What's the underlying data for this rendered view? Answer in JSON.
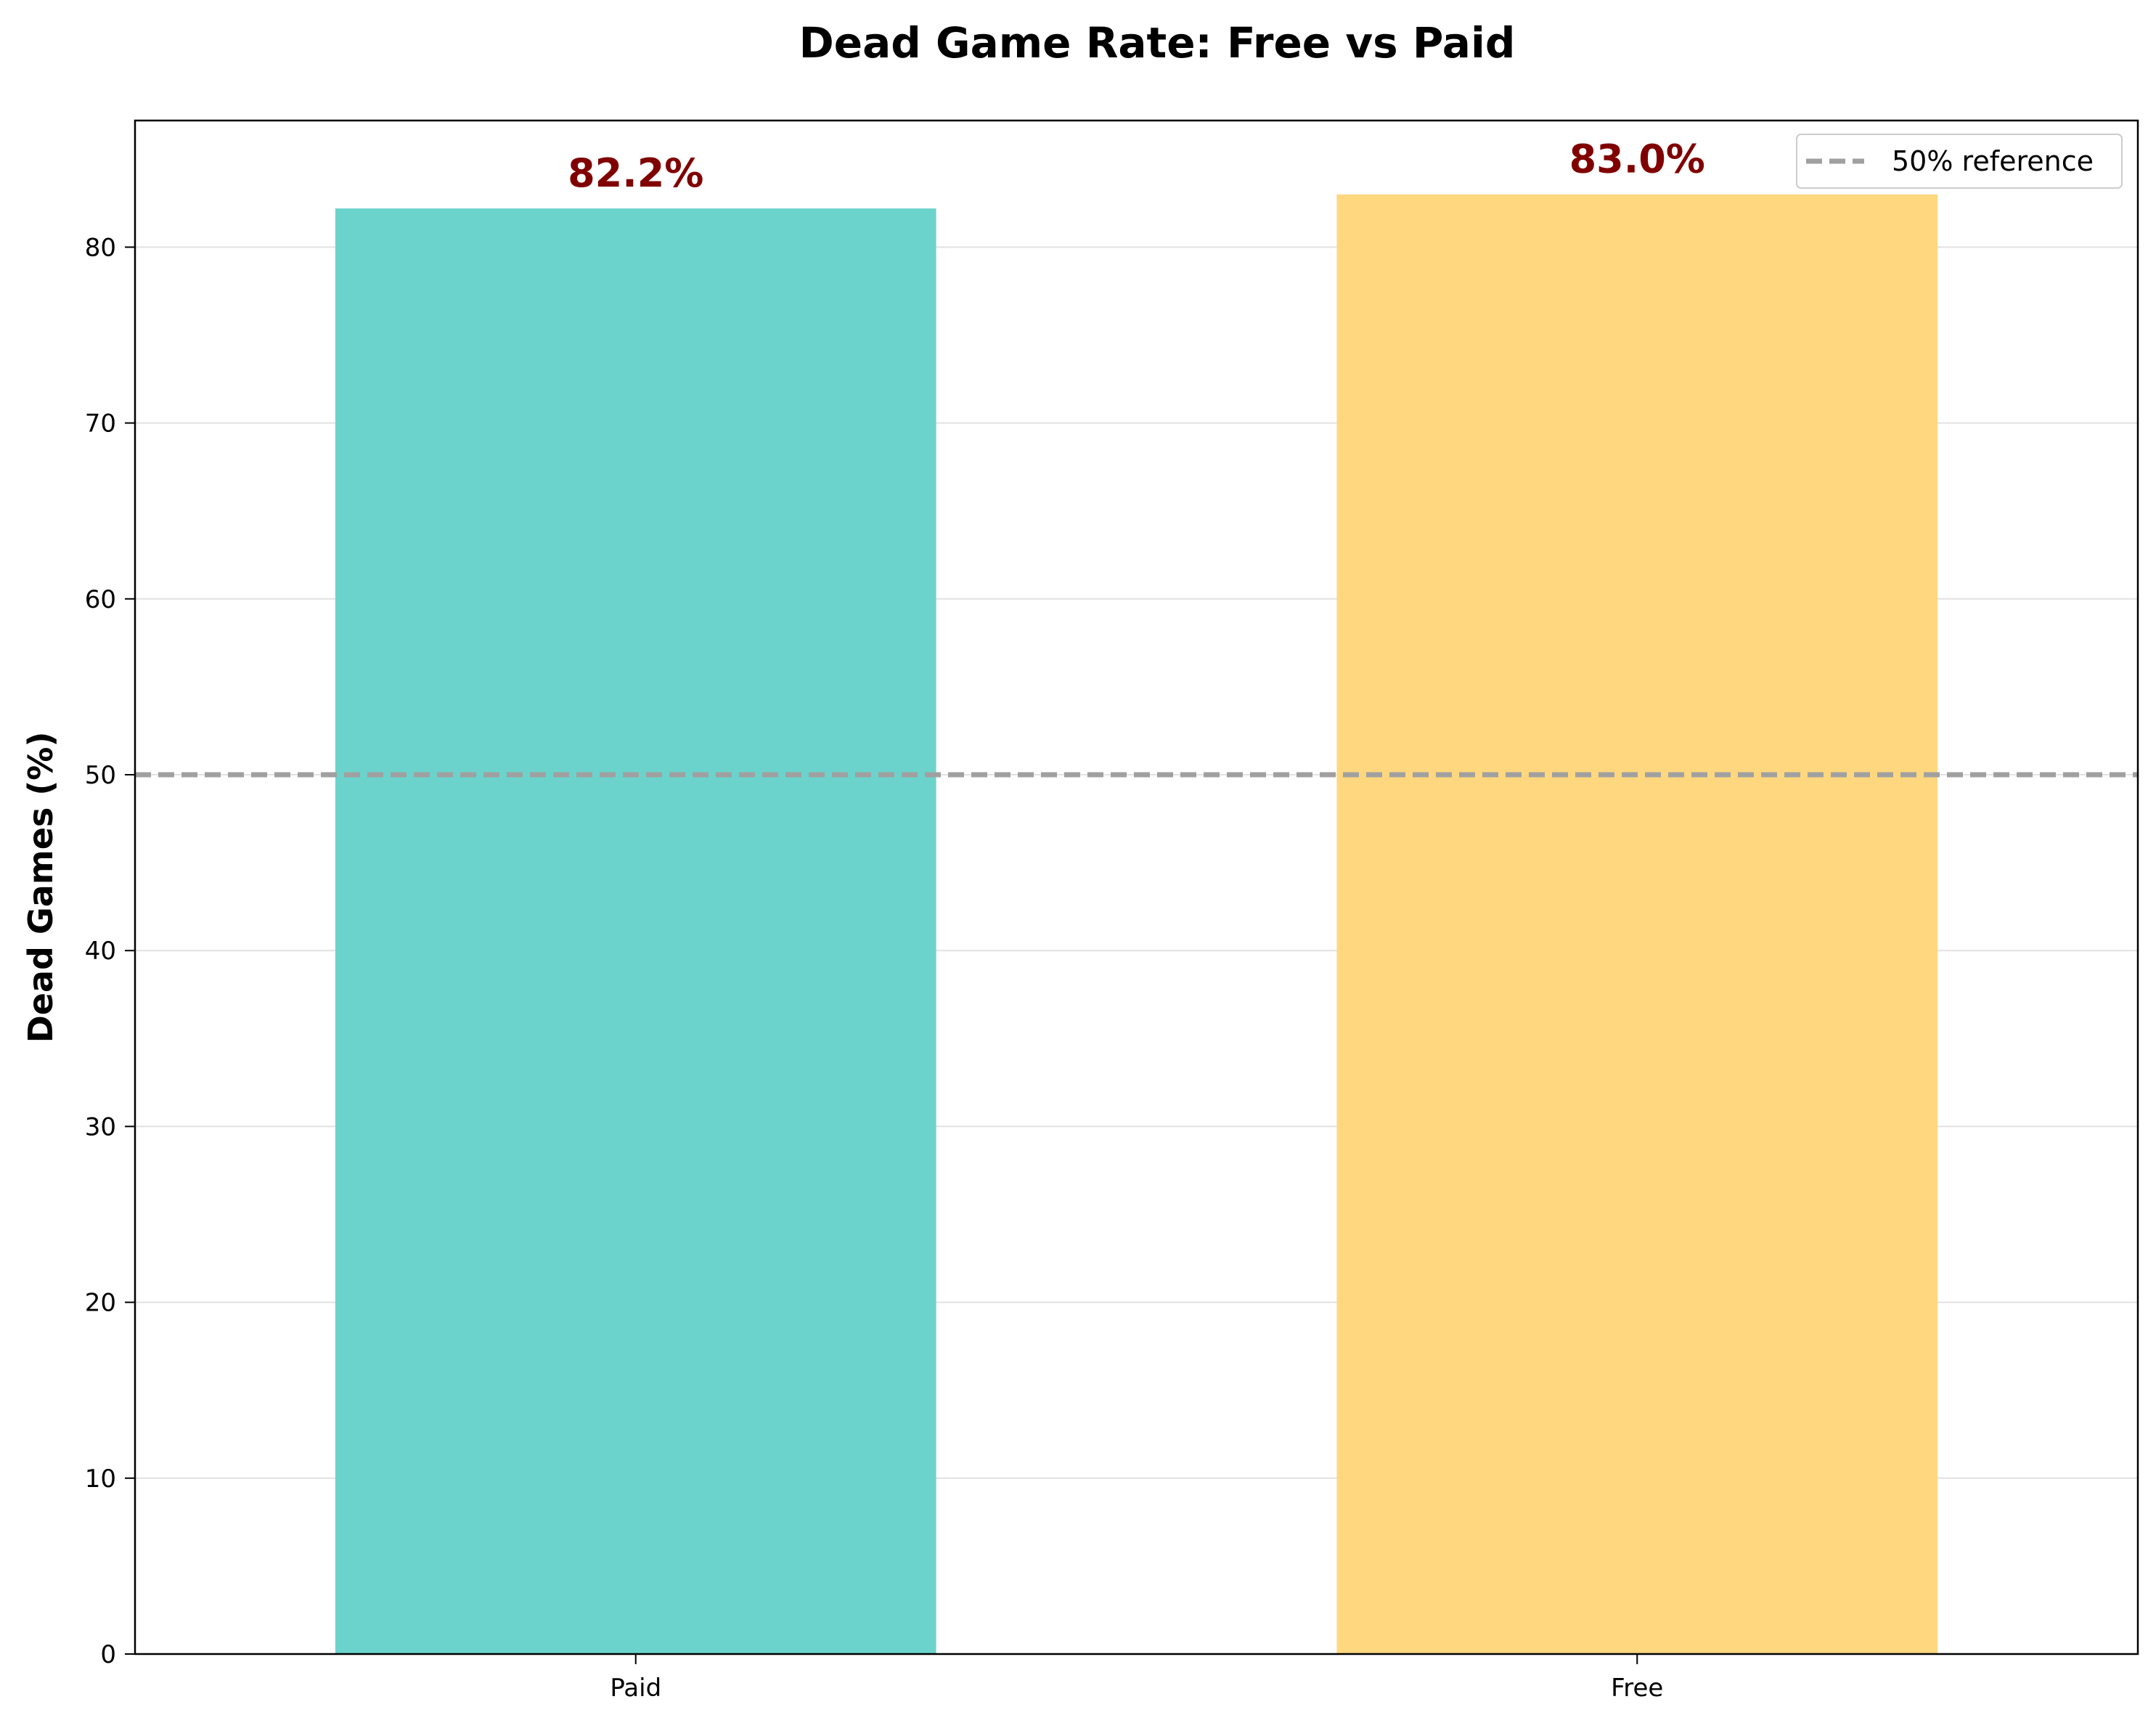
{
  "chart_data": {
    "type": "bar",
    "title": "Dead Game Rate: Free vs Paid",
    "xlabel": "",
    "ylabel": "Dead Games (%)",
    "categories": [
      "Paid",
      "Free"
    ],
    "values": [
      82.2,
      83.0
    ],
    "value_labels": [
      "82.2%",
      "83.0%"
    ],
    "ylim": [
      0,
      87.2
    ],
    "yticks": [
      0,
      10,
      20,
      30,
      40,
      50,
      60,
      70,
      80
    ],
    "grid": "y-axis",
    "reference_line": {
      "value": 50,
      "label": "50% reference",
      "color": "#a0a0a0",
      "style": "dashed"
    },
    "legend": {
      "placement": "top-right",
      "entries": [
        "50% reference"
      ]
    },
    "colors": {
      "bars": [
        "#6bd3cc",
        "#fed77f"
      ],
      "value_label": "#800000"
    }
  }
}
